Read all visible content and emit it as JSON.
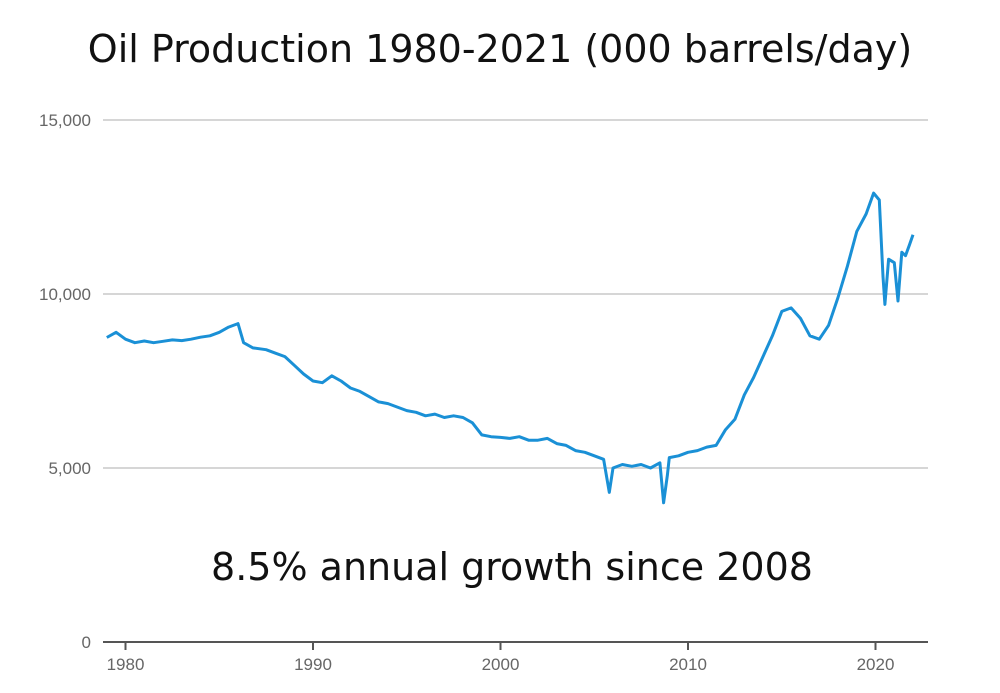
{
  "chart_data": {
    "type": "line",
    "title": "Oil Production 1980-2021 (000 barrels/day)",
    "annotation": "8.5% annual growth since 2008",
    "xlabel": "",
    "ylabel": "",
    "xlim": [
      1978.8,
      2022.8
    ],
    "ylim": [
      0,
      15000
    ],
    "y_ticks": [
      {
        "value": 0,
        "label": "0"
      },
      {
        "value": 5000,
        "label": "5,000"
      },
      {
        "value": 10000,
        "label": "10,000"
      },
      {
        "value": 15000,
        "label": "15,000"
      }
    ],
    "x_ticks": [
      {
        "value": 1980,
        "label": "1980"
      },
      {
        "value": 1990,
        "label": "1990"
      },
      {
        "value": 2000,
        "label": "2000"
      },
      {
        "value": 2010,
        "label": "2010"
      },
      {
        "value": 2020,
        "label": "2020"
      }
    ],
    "grid": true,
    "series": [
      {
        "color": "#1a90d6",
        "points": [
          [
            1979.0,
            8750
          ],
          [
            1979.5,
            8900
          ],
          [
            1980.0,
            8700
          ],
          [
            1980.5,
            8600
          ],
          [
            1981.0,
            8650
          ],
          [
            1981.5,
            8600
          ],
          [
            1982.0,
            8640
          ],
          [
            1982.5,
            8680
          ],
          [
            1983.0,
            8660
          ],
          [
            1983.5,
            8700
          ],
          [
            1984.0,
            8760
          ],
          [
            1984.5,
            8800
          ],
          [
            1985.0,
            8900
          ],
          [
            1985.5,
            9050
          ],
          [
            1986.0,
            9150
          ],
          [
            1986.3,
            8600
          ],
          [
            1986.8,
            8450
          ],
          [
            1987.5,
            8400
          ],
          [
            1988.0,
            8300
          ],
          [
            1988.5,
            8200
          ],
          [
            1989.0,
            7950
          ],
          [
            1989.5,
            7700
          ],
          [
            1990.0,
            7500
          ],
          [
            1990.5,
            7450
          ],
          [
            1991.0,
            7650
          ],
          [
            1991.5,
            7500
          ],
          [
            1992.0,
            7300
          ],
          [
            1992.5,
            7200
          ],
          [
            1993.0,
            7050
          ],
          [
            1993.5,
            6900
          ],
          [
            1994.0,
            6850
          ],
          [
            1994.5,
            6750
          ],
          [
            1995.0,
            6650
          ],
          [
            1995.5,
            6600
          ],
          [
            1996.0,
            6500
          ],
          [
            1996.5,
            6550
          ],
          [
            1997.0,
            6450
          ],
          [
            1997.5,
            6500
          ],
          [
            1998.0,
            6450
          ],
          [
            1998.5,
            6300
          ],
          [
            1999.0,
            5950
          ],
          [
            1999.5,
            5900
          ],
          [
            2000.0,
            5880
          ],
          [
            2000.5,
            5850
          ],
          [
            2001.0,
            5900
          ],
          [
            2001.5,
            5800
          ],
          [
            2002.0,
            5800
          ],
          [
            2002.5,
            5850
          ],
          [
            2003.0,
            5700
          ],
          [
            2003.5,
            5650
          ],
          [
            2004.0,
            5500
          ],
          [
            2004.5,
            5450
          ],
          [
            2005.0,
            5350
          ],
          [
            2005.5,
            5250
          ],
          [
            2005.8,
            4300
          ],
          [
            2006.0,
            5000
          ],
          [
            2006.5,
            5100
          ],
          [
            2007.0,
            5050
          ],
          [
            2007.5,
            5100
          ],
          [
            2008.0,
            5000
          ],
          [
            2008.5,
            5150
          ],
          [
            2008.7,
            4000
          ],
          [
            2008.9,
            4800
          ],
          [
            2009.0,
            5300
          ],
          [
            2009.5,
            5350
          ],
          [
            2010.0,
            5450
          ],
          [
            2010.5,
            5500
          ],
          [
            2011.0,
            5600
          ],
          [
            2011.5,
            5650
          ],
          [
            2012.0,
            6100
          ],
          [
            2012.5,
            6400
          ],
          [
            2013.0,
            7100
          ],
          [
            2013.5,
            7600
          ],
          [
            2014.0,
            8200
          ],
          [
            2014.5,
            8800
          ],
          [
            2015.0,
            9500
          ],
          [
            2015.5,
            9600
          ],
          [
            2016.0,
            9300
          ],
          [
            2016.5,
            8800
          ],
          [
            2017.0,
            8700
          ],
          [
            2017.5,
            9100
          ],
          [
            2018.0,
            9900
          ],
          [
            2018.5,
            10800
          ],
          [
            2019.0,
            11800
          ],
          [
            2019.5,
            12300
          ],
          [
            2019.9,
            12900
          ],
          [
            2020.2,
            12700
          ],
          [
            2020.4,
            10500
          ],
          [
            2020.5,
            9700
          ],
          [
            2020.7,
            11000
          ],
          [
            2021.0,
            10900
          ],
          [
            2021.2,
            9800
          ],
          [
            2021.4,
            11200
          ],
          [
            2021.6,
            11100
          ],
          [
            2021.8,
            11400
          ],
          [
            2022.0,
            11700
          ]
        ]
      }
    ]
  }
}
